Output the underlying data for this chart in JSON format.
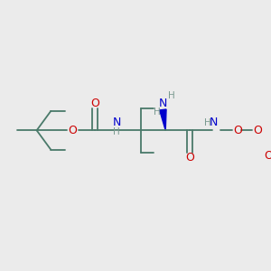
{
  "background_color": "#ebebeb",
  "bond_color": "#4a7a6a",
  "N_color": "#0000cc",
  "O_color": "#cc0000",
  "C_color": "#4a7a6a",
  "H_color": "#7a9a90",
  "figsize": [
    3.0,
    3.0
  ],
  "dpi": 100,
  "xlim": [
    0,
    10
  ],
  "ylim": [
    0,
    10
  ]
}
